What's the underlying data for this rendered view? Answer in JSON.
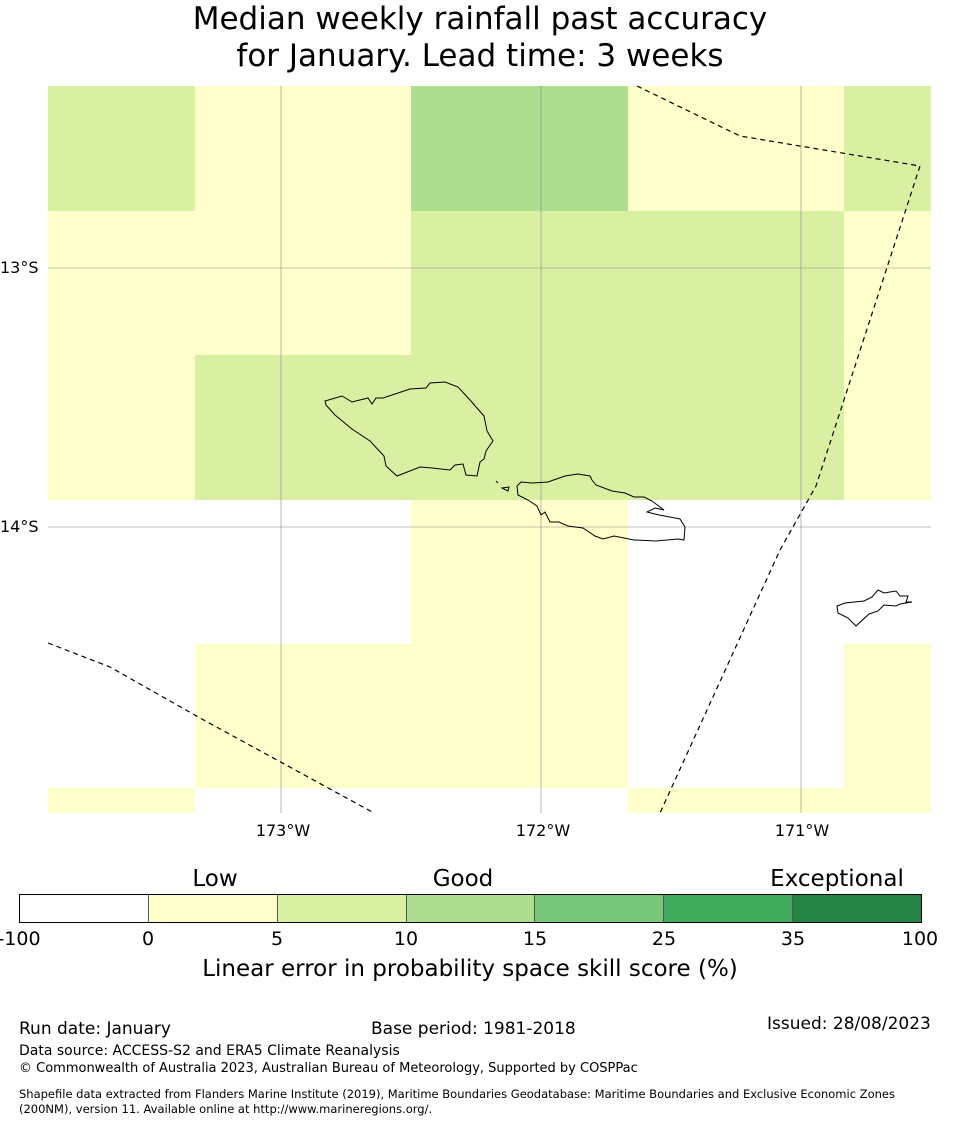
{
  "title_line1": "Median weekly rainfall past accuracy",
  "title_line2": "for January. Lead time: 3 weeks",
  "map": {
    "lat_labels": [
      "13°S",
      "14°S"
    ],
    "lon_labels": [
      "173°W",
      "172°W",
      "171°W"
    ],
    "grid_cells": [
      {
        "col": 0,
        "row": 0,
        "category": "5-10"
      },
      {
        "col": 1,
        "row": 0,
        "category": "0-5"
      },
      {
        "col": 2,
        "row": 0,
        "category": "10-15"
      },
      {
        "col": 3,
        "row": 0,
        "category": "0-5"
      },
      {
        "col": 4,
        "row": 0,
        "category": "5-10"
      },
      {
        "col": 0,
        "row": 1,
        "category": "0-5"
      },
      {
        "col": 1,
        "row": 1,
        "category": "0-5"
      },
      {
        "col": 2,
        "row": 1,
        "category": "5-10"
      },
      {
        "col": 3,
        "row": 1,
        "category": "5-10"
      },
      {
        "col": 4,
        "row": 1,
        "category": "0-5"
      },
      {
        "col": 0,
        "row": 2,
        "category": "0-5"
      },
      {
        "col": 1,
        "row": 2,
        "category": "5-10"
      },
      {
        "col": 2,
        "row": 2,
        "category": "5-10"
      },
      {
        "col": 3,
        "row": 2,
        "category": "5-10"
      },
      {
        "col": 4,
        "row": 2,
        "category": "0-5"
      },
      {
        "col": 0,
        "row": 3,
        "category": "-100-0"
      },
      {
        "col": 1,
        "row": 3,
        "category": "-100-0"
      },
      {
        "col": 2,
        "row": 3,
        "category": "0-5"
      },
      {
        "col": 3,
        "row": 3,
        "category": "-100-0"
      },
      {
        "col": 4,
        "row": 3,
        "category": "-100-0"
      },
      {
        "col": 0,
        "row": 4,
        "category": "-100-0"
      },
      {
        "col": 1,
        "row": 4,
        "category": "0-5"
      },
      {
        "col": 2,
        "row": 4,
        "category": "0-5"
      },
      {
        "col": 3,
        "row": 4,
        "category": "-100-0"
      },
      {
        "col": 4,
        "row": 4,
        "category": "0-5"
      },
      {
        "col": 0,
        "row": 5,
        "category": "0-5"
      },
      {
        "col": 1,
        "row": 5,
        "category": "-100-0"
      },
      {
        "col": 2,
        "row": 5,
        "category": "-100-0"
      },
      {
        "col": 3,
        "row": 5,
        "category": "0-5"
      },
      {
        "col": 4,
        "row": 5,
        "category": "0-5"
      }
    ]
  },
  "legend": {
    "category_labels": [
      "Low",
      "Good",
      "Exceptional"
    ],
    "ticks": [
      "-100",
      "0",
      "5",
      "10",
      "15",
      "25",
      "35",
      "100"
    ],
    "colors": [
      "#ffffff",
      "#ffffcc",
      "#d9f0a3",
      "#addd8e",
      "#78c679",
      "#41ab5d",
      "#238443"
    ],
    "bins": [
      "-100-0",
      "0-5",
      "5-10",
      "10-15",
      "15-25",
      "25-35",
      "35-100"
    ],
    "label": "Linear error in probability space skill score (%)"
  },
  "footer": {
    "run_date": "Run date: January",
    "base_period": "Base period: 1981-2018",
    "issued": "Issued: 28/08/2023",
    "data_source": "Data source: ACCESS-S2 and ERA5 Climate Reanalysis",
    "copyright": "© Commonwealth of Australia 2023, Australian Bureau of Meteorology, Supported by COSPPac",
    "shapefile_line1": "Shapefile data extracted from Flanders Marine Institute (2019), Maritime Boundaries Geodatabase: Maritime Boundaries and Exclusive Economic Zones",
    "shapefile_line2": "(200NM), version 11. Available online at http://www.marineregions.org/."
  }
}
